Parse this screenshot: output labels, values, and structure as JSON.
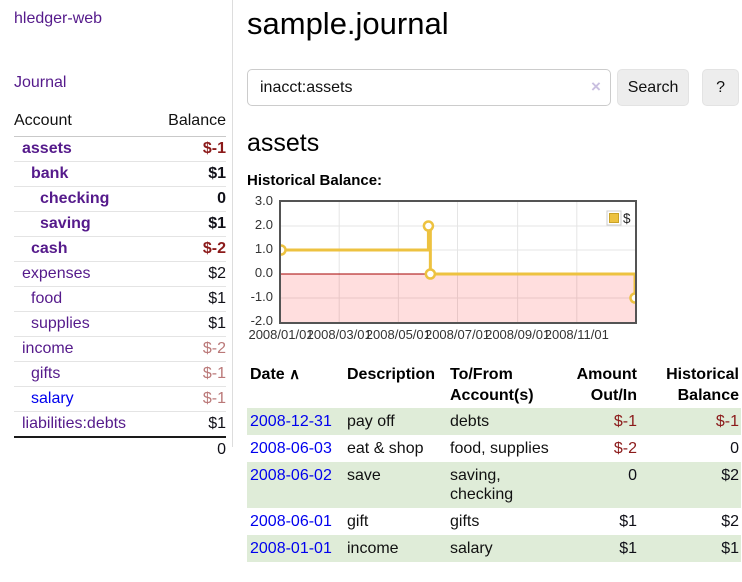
{
  "app": {
    "brand": "hledger-web"
  },
  "colors": {
    "link_purple": "#551A8B",
    "link_blue": "#0000EE",
    "negative": "#8B1A1A",
    "negative_dim": "#BA7878",
    "row_shade_green": "#DFECD8",
    "chart_series_gold": "#EDC240",
    "chart_negative_region": "#FFDDDD",
    "chart_zero_line": "#A40000"
  },
  "sidebar": {
    "journal_link": "Journal",
    "accounts_table": {
      "headers": {
        "account": "Account",
        "balance": "Balance"
      },
      "rows": [
        {
          "name": "assets",
          "depth": 0,
          "bold": true,
          "link_color": "purple",
          "balance": "$-1",
          "balance_style": "negative"
        },
        {
          "name": "bank",
          "depth": 1,
          "bold": true,
          "link_color": "purple",
          "balance": "$1",
          "balance_style": "positive"
        },
        {
          "name": "checking",
          "depth": 2,
          "bold": true,
          "link_color": "purple",
          "balance": "0",
          "balance_style": "positive"
        },
        {
          "name": "saving",
          "depth": 2,
          "bold": true,
          "link_color": "purple",
          "balance": "$1",
          "balance_style": "positive"
        },
        {
          "name": "cash",
          "depth": 1,
          "bold": true,
          "link_color": "purple",
          "balance": "$-2",
          "balance_style": "negative"
        },
        {
          "name": "expenses",
          "depth": 0,
          "bold": false,
          "link_color": "purple",
          "balance": "$2",
          "balance_style": "positive"
        },
        {
          "name": "food",
          "depth": 1,
          "bold": false,
          "link_color": "purple",
          "balance": "$1",
          "balance_style": "positive"
        },
        {
          "name": "supplies",
          "depth": 1,
          "bold": false,
          "link_color": "purple",
          "balance": "$1",
          "balance_style": "positive"
        },
        {
          "name": "income",
          "depth": 0,
          "bold": false,
          "link_color": "purple",
          "balance": "$-2",
          "balance_style": "negative-dim"
        },
        {
          "name": "gifts",
          "depth": 1,
          "bold": false,
          "link_color": "purple",
          "balance": "$-1",
          "balance_style": "negative-dim"
        },
        {
          "name": "salary",
          "depth": 1,
          "bold": false,
          "link_color": "blue",
          "balance": "$-1",
          "balance_style": "negative-dim"
        },
        {
          "name": "liabilities:debts",
          "depth": 0,
          "bold": false,
          "link_color": "purple",
          "balance": "$1",
          "balance_style": "positive"
        }
      ],
      "total": "0"
    }
  },
  "header": {
    "title": "sample.journal"
  },
  "search": {
    "value": "inacct:assets",
    "clear_icon": "×",
    "button_label": "Search",
    "help_label": "?"
  },
  "account_page": {
    "heading": "assets",
    "chart_label": "Historical Balance:"
  },
  "chart_data": {
    "type": "line",
    "title": "Historical Balance:",
    "step": true,
    "series": [
      {
        "name": "$",
        "points": [
          [
            "2008-01-01",
            1
          ],
          [
            "2008-06-01",
            2
          ],
          [
            "2008-06-03",
            0
          ],
          [
            "2008-12-31",
            -1
          ]
        ]
      }
    ],
    "xlim": [
      "2008-01-01",
      "2008-12-31"
    ],
    "ylim": [
      -2,
      3
    ],
    "ytick_labels": [
      "3.0",
      "2.0",
      "1.0",
      "0.0",
      "-1.0",
      "-2.0"
    ],
    "xtick_labels": [
      "2008/01/01",
      "2008/03/01",
      "2008/05/01",
      "2008/07/01",
      "2008/09/01",
      "2008/11/01"
    ],
    "grid": true,
    "legend_position": "top-right",
    "negative_region_shaded": true
  },
  "register_table": {
    "headers": [
      {
        "label": "Date",
        "sort_icon": "∧",
        "align": "left"
      },
      {
        "label": "Description",
        "align": "left"
      },
      {
        "label": "To/From\nAccount(s)",
        "align": "left"
      },
      {
        "label": "Amount\nOut/In",
        "align": "right"
      },
      {
        "label": "Historical\nBalance",
        "align": "right"
      }
    ],
    "rows": [
      {
        "date": "2008-12-31",
        "description": "pay off",
        "accounts": "debts",
        "amount": "$-1",
        "amount_style": "negative",
        "balance": "$-1",
        "balance_style": "negative"
      },
      {
        "date": "2008-06-03",
        "description": "eat & shop",
        "accounts": "food, supplies",
        "amount": "$-2",
        "amount_style": "negative",
        "balance": "0",
        "balance_style": "positive"
      },
      {
        "date": "2008-06-02",
        "description": "save",
        "accounts": "saving, checking",
        "amount": "0",
        "amount_style": "positive",
        "balance": "$2",
        "balance_style": "positive"
      },
      {
        "date": "2008-06-01",
        "description": "gift",
        "accounts": "gifts",
        "amount": "$1",
        "amount_style": "positive",
        "balance": "$2",
        "balance_style": "positive"
      },
      {
        "date": "2008-01-01",
        "description": "income",
        "accounts": "salary",
        "amount": "$1",
        "amount_style": "positive",
        "balance": "$1",
        "balance_style": "positive"
      }
    ]
  }
}
